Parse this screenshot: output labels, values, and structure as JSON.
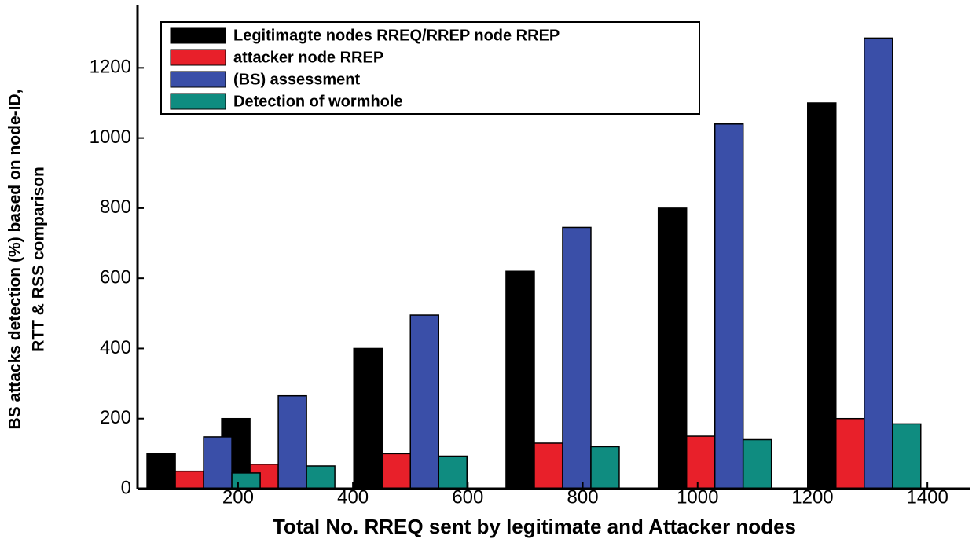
{
  "chart_data": {
    "type": "bar",
    "xlabel": "Total No. RREQ sent by legitimate and Attacker nodes",
    "ylabel": [
      "BS attacks detection (%) based on node-ID,",
      "RTT & RSS comparison"
    ],
    "x": [
      140,
      270,
      500,
      765,
      1030,
      1290
    ],
    "series": [
      {
        "name": "Legitimagte nodes RREQ/RREP node RREP",
        "color": "#000000",
        "values": [
          100,
          200,
          400,
          620,
          800,
          1100
        ]
      },
      {
        "name": "attacker node RREP",
        "color": "#e8202a",
        "values": [
          50,
          70,
          100,
          130,
          150,
          200
        ]
      },
      {
        "name": "(BS) assessment",
        "color": "#3a4fa8",
        "values": [
          148,
          265,
          495,
          745,
          1040,
          1285
        ]
      },
      {
        "name": "Detection of wormhole",
        "color": "#0f8c80",
        "values": [
          45,
          65,
          93,
          120,
          140,
          185
        ]
      }
    ],
    "xlim": [
      25,
      1475
    ],
    "xticks": [
      200,
      400,
      600,
      800,
      1000,
      1200,
      1400
    ],
    "ylim": [
      0,
      1380
    ],
    "yticks": [
      0,
      200,
      400,
      600,
      800,
      1000,
      1200
    ],
    "grid": false,
    "legend": "top-left"
  }
}
